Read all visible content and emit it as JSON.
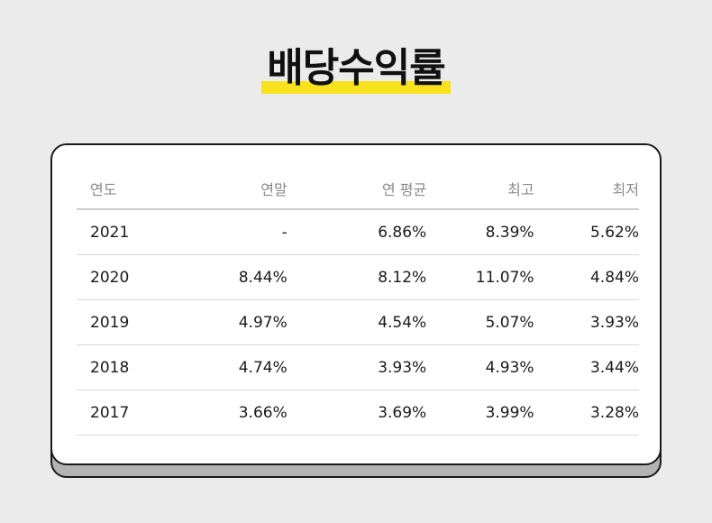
{
  "title": "배당수익률",
  "table": {
    "headers": [
      "연도",
      "연말",
      "연 평균",
      "최고",
      "최저"
    ],
    "rows": [
      [
        "2021",
        "-",
        "6.86%",
        "8.39%",
        "5.62%"
      ],
      [
        "2020",
        "8.44%",
        "8.12%",
        "11.07%",
        "4.84%"
      ],
      [
        "2019",
        "4.97%",
        "4.54%",
        "5.07%",
        "3.93%"
      ],
      [
        "2018",
        "4.74%",
        "3.93%",
        "4.93%",
        "3.44%"
      ],
      [
        "2017",
        "3.66%",
        "3.69%",
        "3.99%",
        "3.28%"
      ]
    ]
  },
  "colors": {
    "background": "#ebebeb",
    "highlight": "#f7e21d",
    "card": "#ffffff",
    "header_text": "#8a8a8a"
  }
}
